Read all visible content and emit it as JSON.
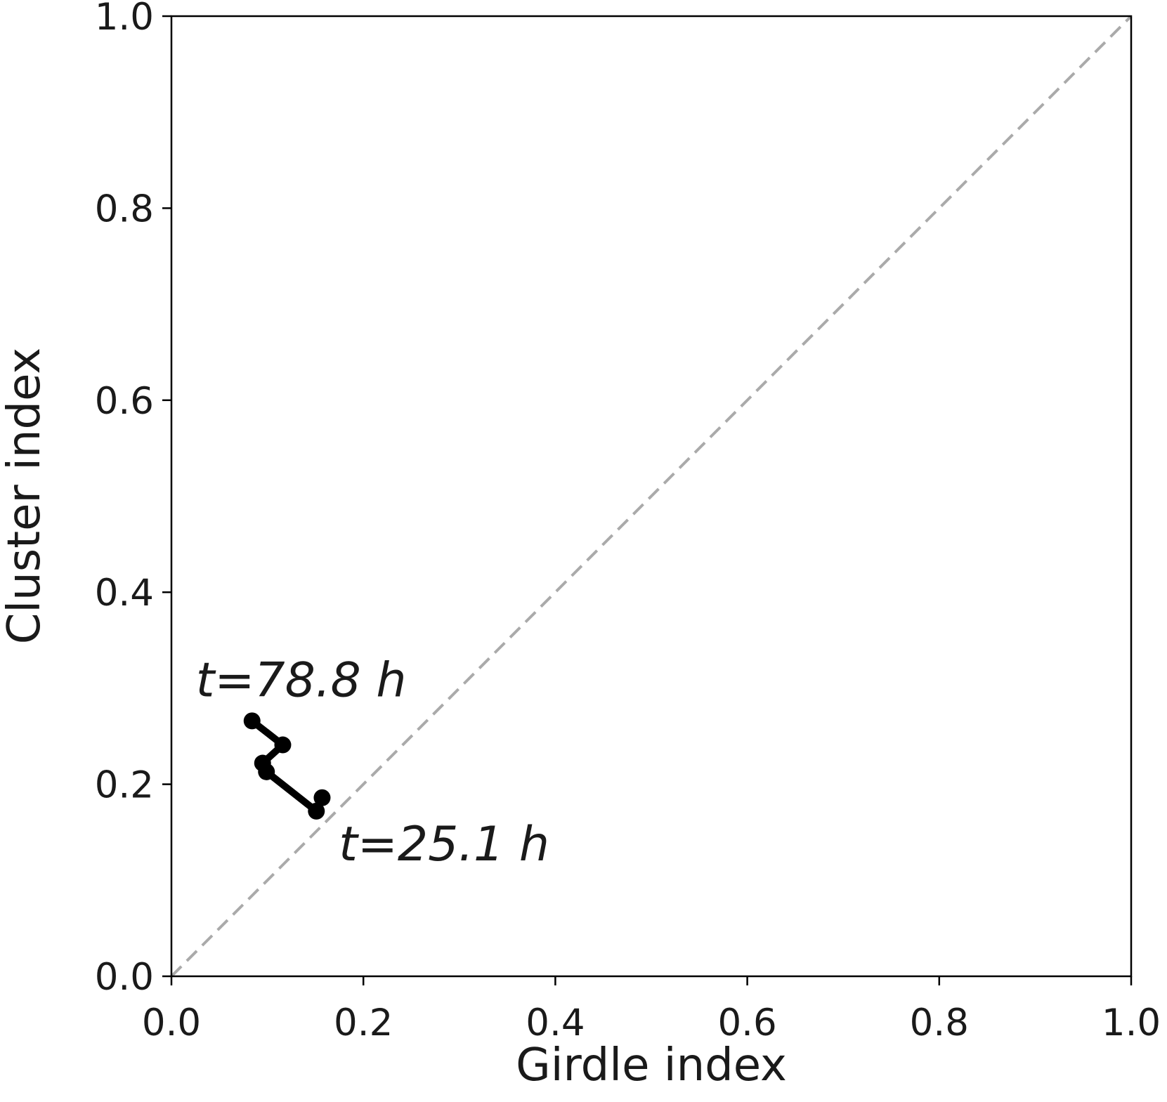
{
  "chart_data": {
    "type": "line",
    "xlabel": "Girdle index",
    "ylabel": "Cluster index",
    "x": [
      0.157,
      0.151,
      0.099,
      0.095,
      0.116,
      0.084
    ],
    "series": [
      {
        "color": "#000000",
        "values": [
          0.186,
          0.172,
          0.213,
          0.222,
          0.241,
          0.266
        ]
      }
    ],
    "annotations": [
      "t=25.1 h",
      "t=78.8 h"
    ],
    "xlim": [
      0.0,
      1.0
    ],
    "ylim": [
      0.0,
      1.0
    ],
    "xticks": [
      {
        "value": 0,
        "label": "0.0"
      },
      0.2,
      0.4,
      0.6,
      0.8,
      {
        "value": 1,
        "label": "1.0"
      }
    ],
    "yticks": [
      {
        "value": 0,
        "label": "0.0"
      },
      0.2,
      0.4,
      0.6,
      0.8,
      {
        "value": 1,
        "label": "1.0"
      }
    ],
    "diagonal_color": "#aaaaaa",
    "grid": false
  }
}
